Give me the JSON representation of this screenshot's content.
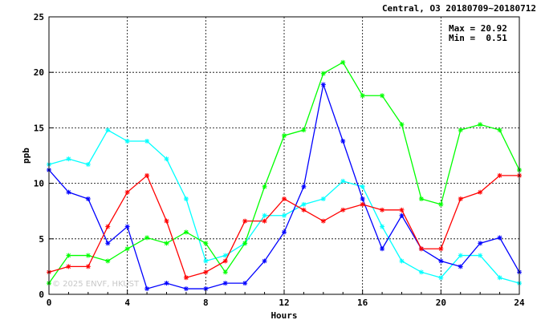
{
  "chart_data": {
    "type": "line",
    "title": "Central, O3 20180709~20180712",
    "xlabel": "Hours",
    "ylabel": "ppb",
    "xlim": [
      0,
      24
    ],
    "ylim": [
      0,
      25
    ],
    "xticks": [
      0,
      4,
      8,
      12,
      16,
      20,
      24
    ],
    "yticks": [
      0,
      5,
      10,
      15,
      20,
      25
    ],
    "grid": true,
    "annotation": {
      "max_label": "Max = 20.92",
      "min_label": "Min =  0.51"
    },
    "watermark": "© 2025  ENVF, HKUST",
    "x": [
      0,
      1,
      2,
      3,
      4,
      5,
      6,
      7,
      8,
      9,
      10,
      11,
      12,
      13,
      14,
      15,
      16,
      17,
      18,
      19,
      20,
      21,
      22,
      23,
      24
    ],
    "series": [
      {
        "color": "#00ffff",
        "values": [
          11.7,
          12.2,
          11.7,
          14.8,
          13.8,
          13.8,
          12.2,
          8.6,
          3.0,
          3.5,
          4.6,
          7.1,
          7.1,
          8.1,
          8.6,
          10.2,
          9.7,
          6.1,
          3.0,
          2.0,
          1.5,
          3.5,
          3.5,
          1.5,
          1.0
        ]
      },
      {
        "color": "#0000ff",
        "values": [
          11.2,
          9.2,
          8.6,
          4.6,
          6.1,
          0.5,
          1.0,
          0.5,
          0.5,
          1.0,
          1.0,
          3.0,
          5.6,
          9.7,
          18.9,
          13.8,
          8.6,
          4.1,
          7.1,
          4.1,
          3.0,
          2.5,
          4.6,
          5.1,
          2.0
        ]
      },
      {
        "color": "#00ff00",
        "values": [
          1.0,
          3.5,
          3.5,
          3.0,
          4.1,
          5.1,
          4.6,
          5.6,
          4.6,
          2.0,
          4.6,
          9.7,
          14.3,
          14.8,
          19.9,
          20.9,
          17.9,
          17.9,
          15.3,
          8.6,
          8.1,
          14.8,
          15.3,
          14.8,
          11.2
        ]
      },
      {
        "color": "#ff0000",
        "values": [
          2.0,
          2.5,
          2.5,
          6.1,
          9.2,
          10.7,
          6.6,
          1.5,
          2.0,
          3.0,
          6.6,
          6.6,
          8.6,
          7.6,
          6.6,
          7.6,
          8.1,
          7.6,
          7.6,
          4.1,
          4.1,
          8.6,
          9.2,
          10.7,
          10.7
        ]
      }
    ]
  }
}
